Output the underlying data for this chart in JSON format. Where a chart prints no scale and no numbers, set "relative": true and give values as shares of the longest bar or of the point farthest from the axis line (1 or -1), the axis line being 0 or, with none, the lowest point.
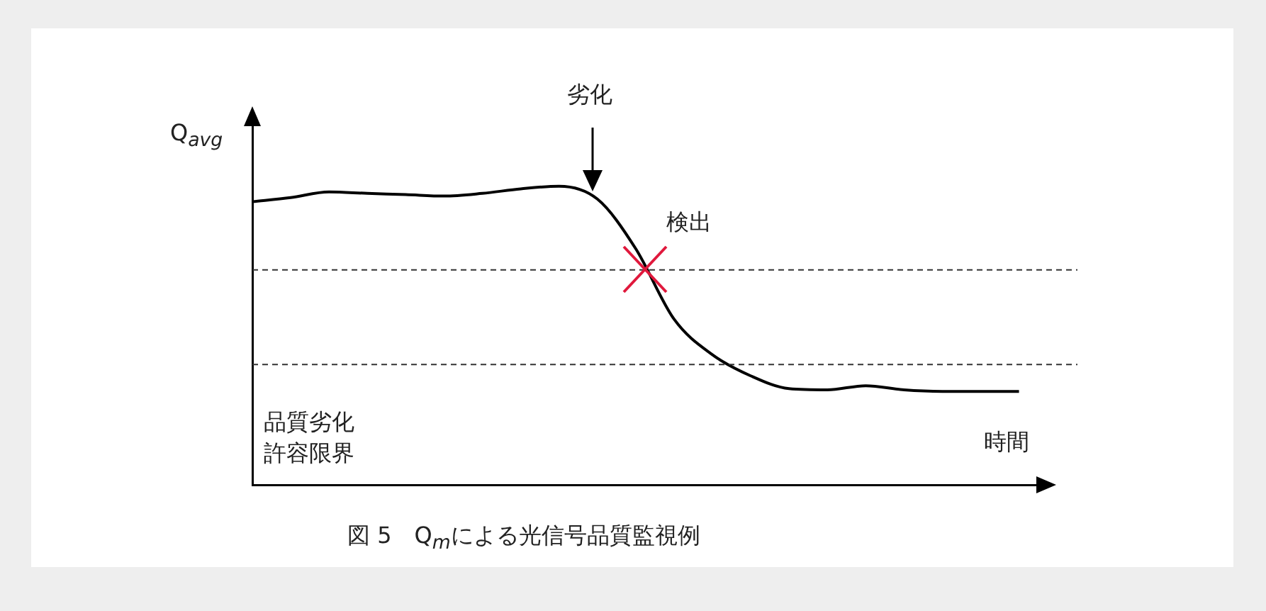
{
  "chart_data": {
    "type": "line",
    "relative": true,
    "title": "図 5　Q$_{m}$による光信号品質監視例",
    "ylabel": "Q$_{avg}$",
    "xlabel": "時間",
    "categories": [
      null,
      null,
      null,
      null,
      null,
      null,
      null,
      null,
      null,
      null,
      null,
      null,
      null,
      null,
      null,
      null,
      null,
      null,
      null,
      null,
      null
    ],
    "series": [
      {
        "color": "#000000",
        "values": [
          0.948,
          0.962,
          0.981,
          0.976,
          0.972,
          0.967,
          0.976,
          0.991,
          1,
          0.957,
          0.791,
          0.555,
          0.436,
          0.365,
          0.322,
          0.318,
          0.332,
          0.318,
          0.313,
          0.313,
          0.313
        ]
      }
    ],
    "ref_lines": [
      {
        "axis": "y",
        "value": 0.72,
        "line_style": "dashed",
        "color": "#333333"
      },
      {
        "axis": "y",
        "value": 0.403,
        "line_style": "dashed",
        "color": "#333333"
      }
    ],
    "annotations": [
      "劣化",
      "検出",
      "品質劣化許容限界"
    ],
    "legend": false,
    "grid": false
  }
}
